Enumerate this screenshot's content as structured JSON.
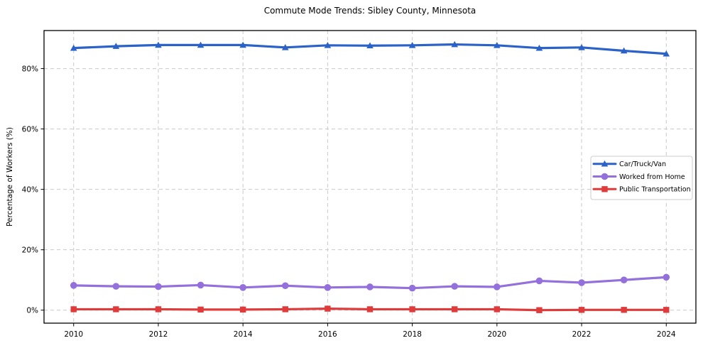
{
  "chart_data": {
    "type": "line",
    "title": "Commute Mode Trends: Sibley County, Minnesota",
    "xlabel": "",
    "ylabel": "Percentage of Workers (%)",
    "x": [
      2010,
      2011,
      2012,
      2013,
      2014,
      2015,
      2016,
      2017,
      2018,
      2019,
      2020,
      2021,
      2022,
      2023,
      2024
    ],
    "x_ticks": [
      2010,
      2012,
      2014,
      2016,
      2018,
      2020,
      2022,
      2024
    ],
    "y_ticks": [
      0,
      20,
      40,
      60,
      80
    ],
    "y_tick_suffix": "%",
    "xlim": [
      2009.3,
      2024.7
    ],
    "ylim": [
      -4.3,
      92.6
    ],
    "grid": true,
    "legend_position": "center right",
    "series": [
      {
        "name": "Car/Truck/Van",
        "color": "#2b62c8",
        "marker": "triangle",
        "values": [
          86.8,
          87.4,
          87.8,
          87.8,
          87.8,
          87.0,
          87.7,
          87.6,
          87.7,
          88.0,
          87.7,
          86.8,
          87.0,
          85.9,
          84.9
        ]
      },
      {
        "name": "Worked from Home",
        "color": "#9370db",
        "marker": "circle",
        "values": [
          8.2,
          7.9,
          7.8,
          8.3,
          7.5,
          8.1,
          7.5,
          7.7,
          7.3,
          7.9,
          7.7,
          9.7,
          9.1,
          10.0,
          10.9
        ]
      },
      {
        "name": "Public Transportation",
        "color": "#e03b3b",
        "marker": "square",
        "values": [
          0.3,
          0.3,
          0.3,
          0.2,
          0.2,
          0.3,
          0.5,
          0.3,
          0.3,
          0.3,
          0.3,
          0.0,
          0.1,
          0.1,
          0.1
        ]
      }
    ],
    "colors": {
      "grid": "#c9c9c9",
      "axis": "#000000",
      "legend_border": "#cccccc",
      "background": "#ffffff"
    }
  }
}
